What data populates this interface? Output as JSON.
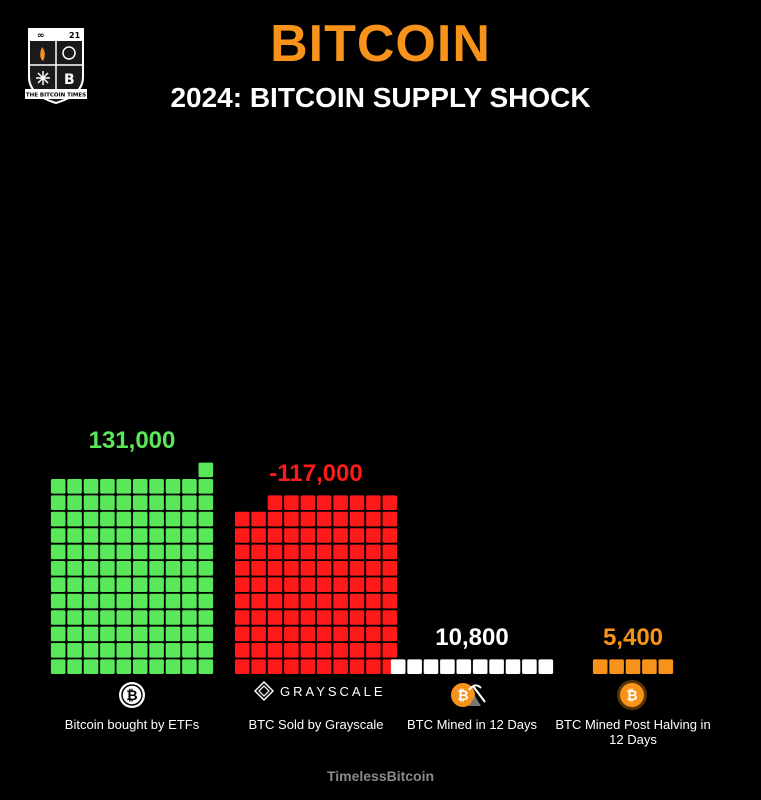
{
  "header": {
    "title": "BITCOIN",
    "subtitle": "2024: BITCOIN SUPPLY SHOCK",
    "logo": {
      "top_text": "21",
      "banner_text": "THE BITCOIN TIMES",
      "letter": "B"
    }
  },
  "footer": {
    "credit": "TimelessBitcoin"
  },
  "colors": {
    "green": "#59e85a",
    "red": "#ff1a1a",
    "white": "#ffffff",
    "orange": "#f7931a",
    "title": "#f7931a"
  },
  "chart_data": {
    "type": "bar",
    "title": "2024: BITCOIN SUPPLY SHOCK",
    "categories": [
      "Bitcoin bought by ETFs",
      "BTC Sold by Grayscale",
      "BTC Mined in 12 Days",
      "BTC Mined Post Halving in 12 Days"
    ],
    "values": [
      131000,
      -117000,
      10800,
      5400
    ],
    "value_labels": [
      "131,000",
      "-117,000",
      "10,800",
      "5,400"
    ],
    "series_colors": [
      "#59e85a",
      "#ff1a1a",
      "#ffffff",
      "#f7931a"
    ],
    "unit_per_square": 1080,
    "columns": 10,
    "grid": false,
    "legend": "none"
  },
  "icons": {
    "etf": "bitcoin-coin-icon",
    "grayscale": "grayscale-logo",
    "mined": "bitcoin-mining-icon",
    "halving": "bitcoin-orange-icon"
  },
  "grayscale_text": "GRAYSCALE"
}
